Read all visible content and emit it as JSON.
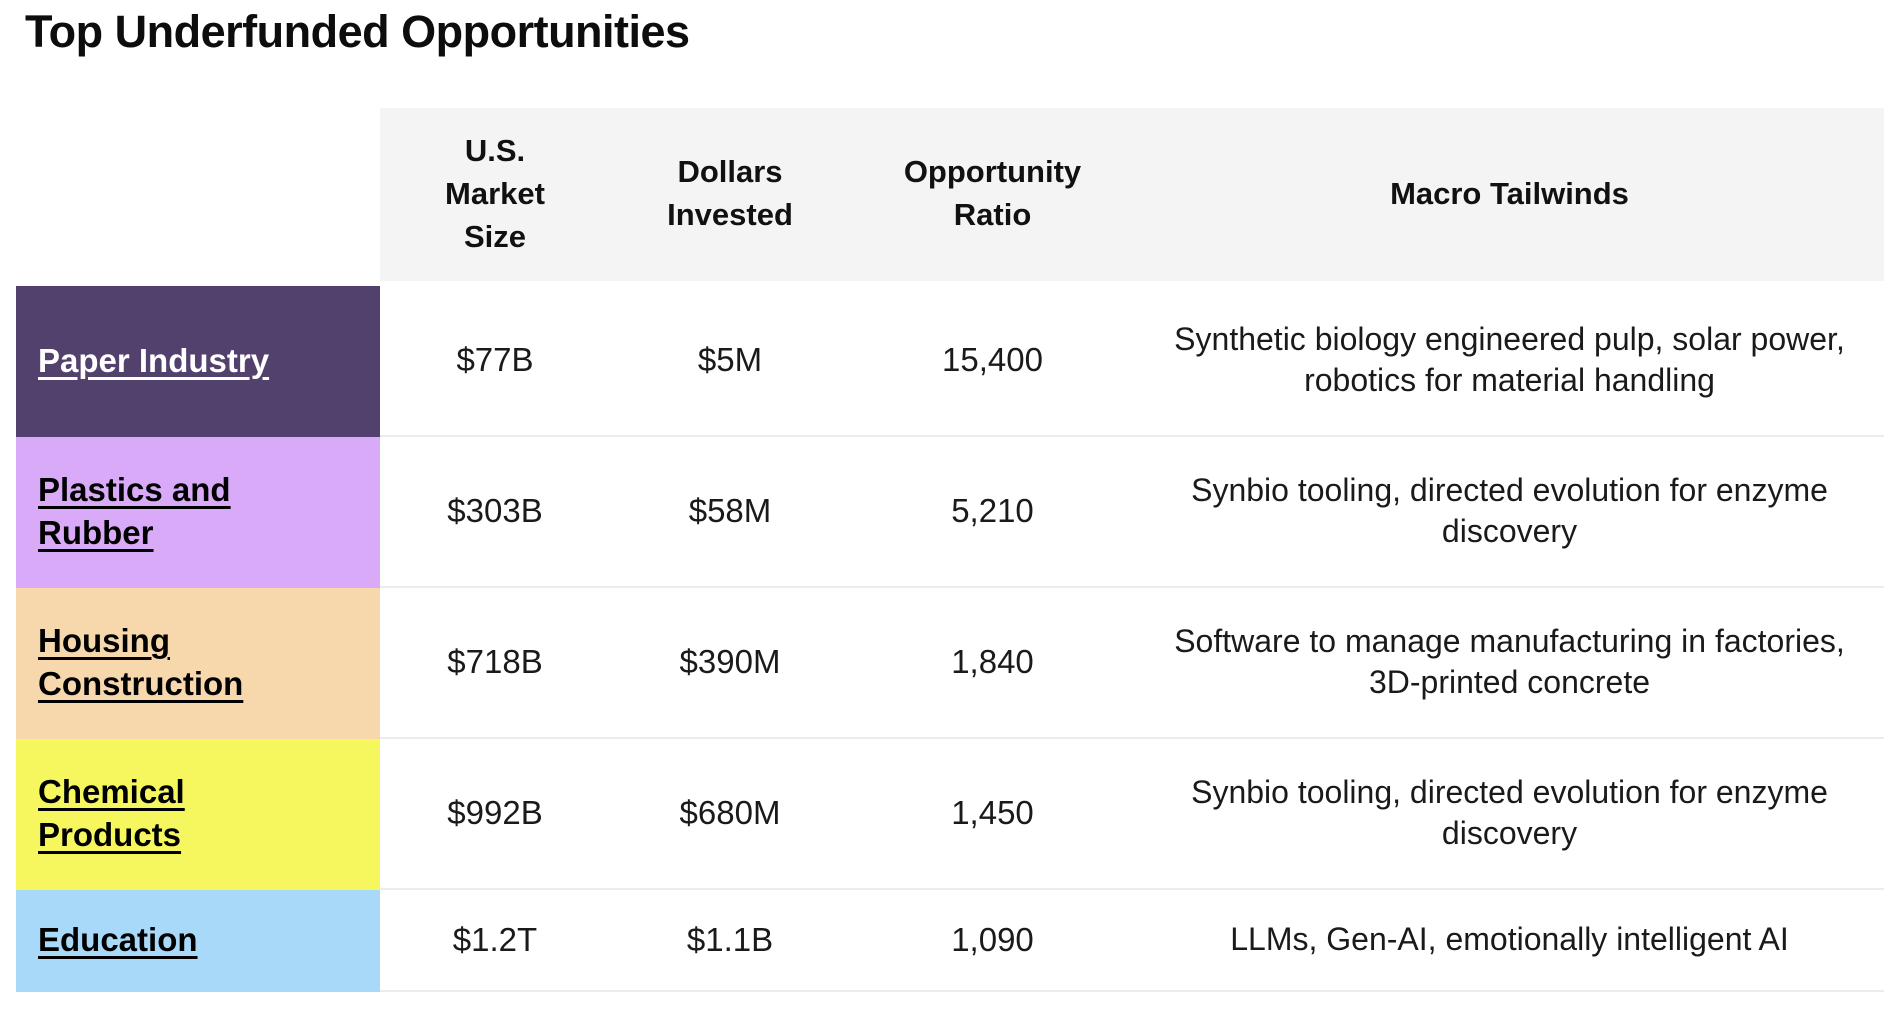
{
  "page": {
    "title": "Top Underfunded Opportunities"
  },
  "table": {
    "header_bg": "#f4f4f4",
    "divider_color": "#ececec",
    "columns": [
      {
        "label": ""
      },
      {
        "label": "U.S. Market Size"
      },
      {
        "label": "Dollars Invested"
      },
      {
        "label": "Opportunity Ratio"
      },
      {
        "label": "Macro Tailwinds"
      }
    ],
    "rows": [
      {
        "label": "Paper Industry",
        "color": "#52406d",
        "text_color": "#ffffff",
        "market_size": "$77B",
        "dollars_invested": "$5M",
        "opportunity_ratio": "15,400",
        "macro_tailwinds": "Synthetic biology engineered pulp, solar power, robotics for material handling"
      },
      {
        "label": "Plastics and Rubber",
        "color": "#d9aaf8",
        "text_color": "#000000",
        "market_size": "$303B",
        "dollars_invested": "$58M",
        "opportunity_ratio": "5,210",
        "macro_tailwinds": "Synbio tooling, directed evolution for enzyme discovery"
      },
      {
        "label": "Housing Construction",
        "color": "#f7d8ac",
        "text_color": "#000000",
        "market_size": "$718B",
        "dollars_invested": "$390M",
        "opportunity_ratio": "1,840",
        "macro_tailwinds": "Software to manage manufacturing in factories, 3D-printed concrete"
      },
      {
        "label": "Chemical Products",
        "color": "#f6f65e",
        "text_color": "#000000",
        "market_size": "$992B",
        "dollars_invested": "$680M",
        "opportunity_ratio": "1,450",
        "macro_tailwinds": "Synbio tooling, directed evolution for enzyme discovery"
      },
      {
        "label": "Education",
        "color": "#a8d9f8",
        "text_color": "#000000",
        "market_size": "$1.2T",
        "dollars_invested": "$1.1B",
        "opportunity_ratio": "1,090",
        "macro_tailwinds": "LLMs, Gen-AI, emotionally intelligent AI"
      }
    ]
  },
  "chart_data": {
    "type": "table",
    "title": "Top Underfunded Opportunities",
    "columns": [
      "",
      "U.S. Market Size",
      "Dollars Invested",
      "Opportunity Ratio",
      "Macro Tailwinds"
    ],
    "rows": [
      [
        "Paper Industry",
        "$77B",
        "$5M",
        "15,400",
        "Synthetic biology engineered pulp, solar power, robotics for material handling"
      ],
      [
        "Plastics and Rubber",
        "$303B",
        "$58M",
        "5,210",
        "Synbio tooling, directed evolution for enzyme discovery"
      ],
      [
        "Housing Construction",
        "$718B",
        "$390M",
        "1,840",
        "Software to manage manufacturing in factories, 3D-printed concrete"
      ],
      [
        "Chemical Products",
        "$992B",
        "$680M",
        "1,450",
        "Synbio tooling, directed evolution for enzyme discovery"
      ],
      [
        "Education",
        "$1.2T",
        "$1.1B",
        "1,090",
        "LLMs, Gen-AI, emotionally intelligent AI"
      ]
    ],
    "row_colors": [
      "#52406d",
      "#d9aaf8",
      "#f7d8ac",
      "#f6f65e",
      "#a8d9f8"
    ]
  }
}
